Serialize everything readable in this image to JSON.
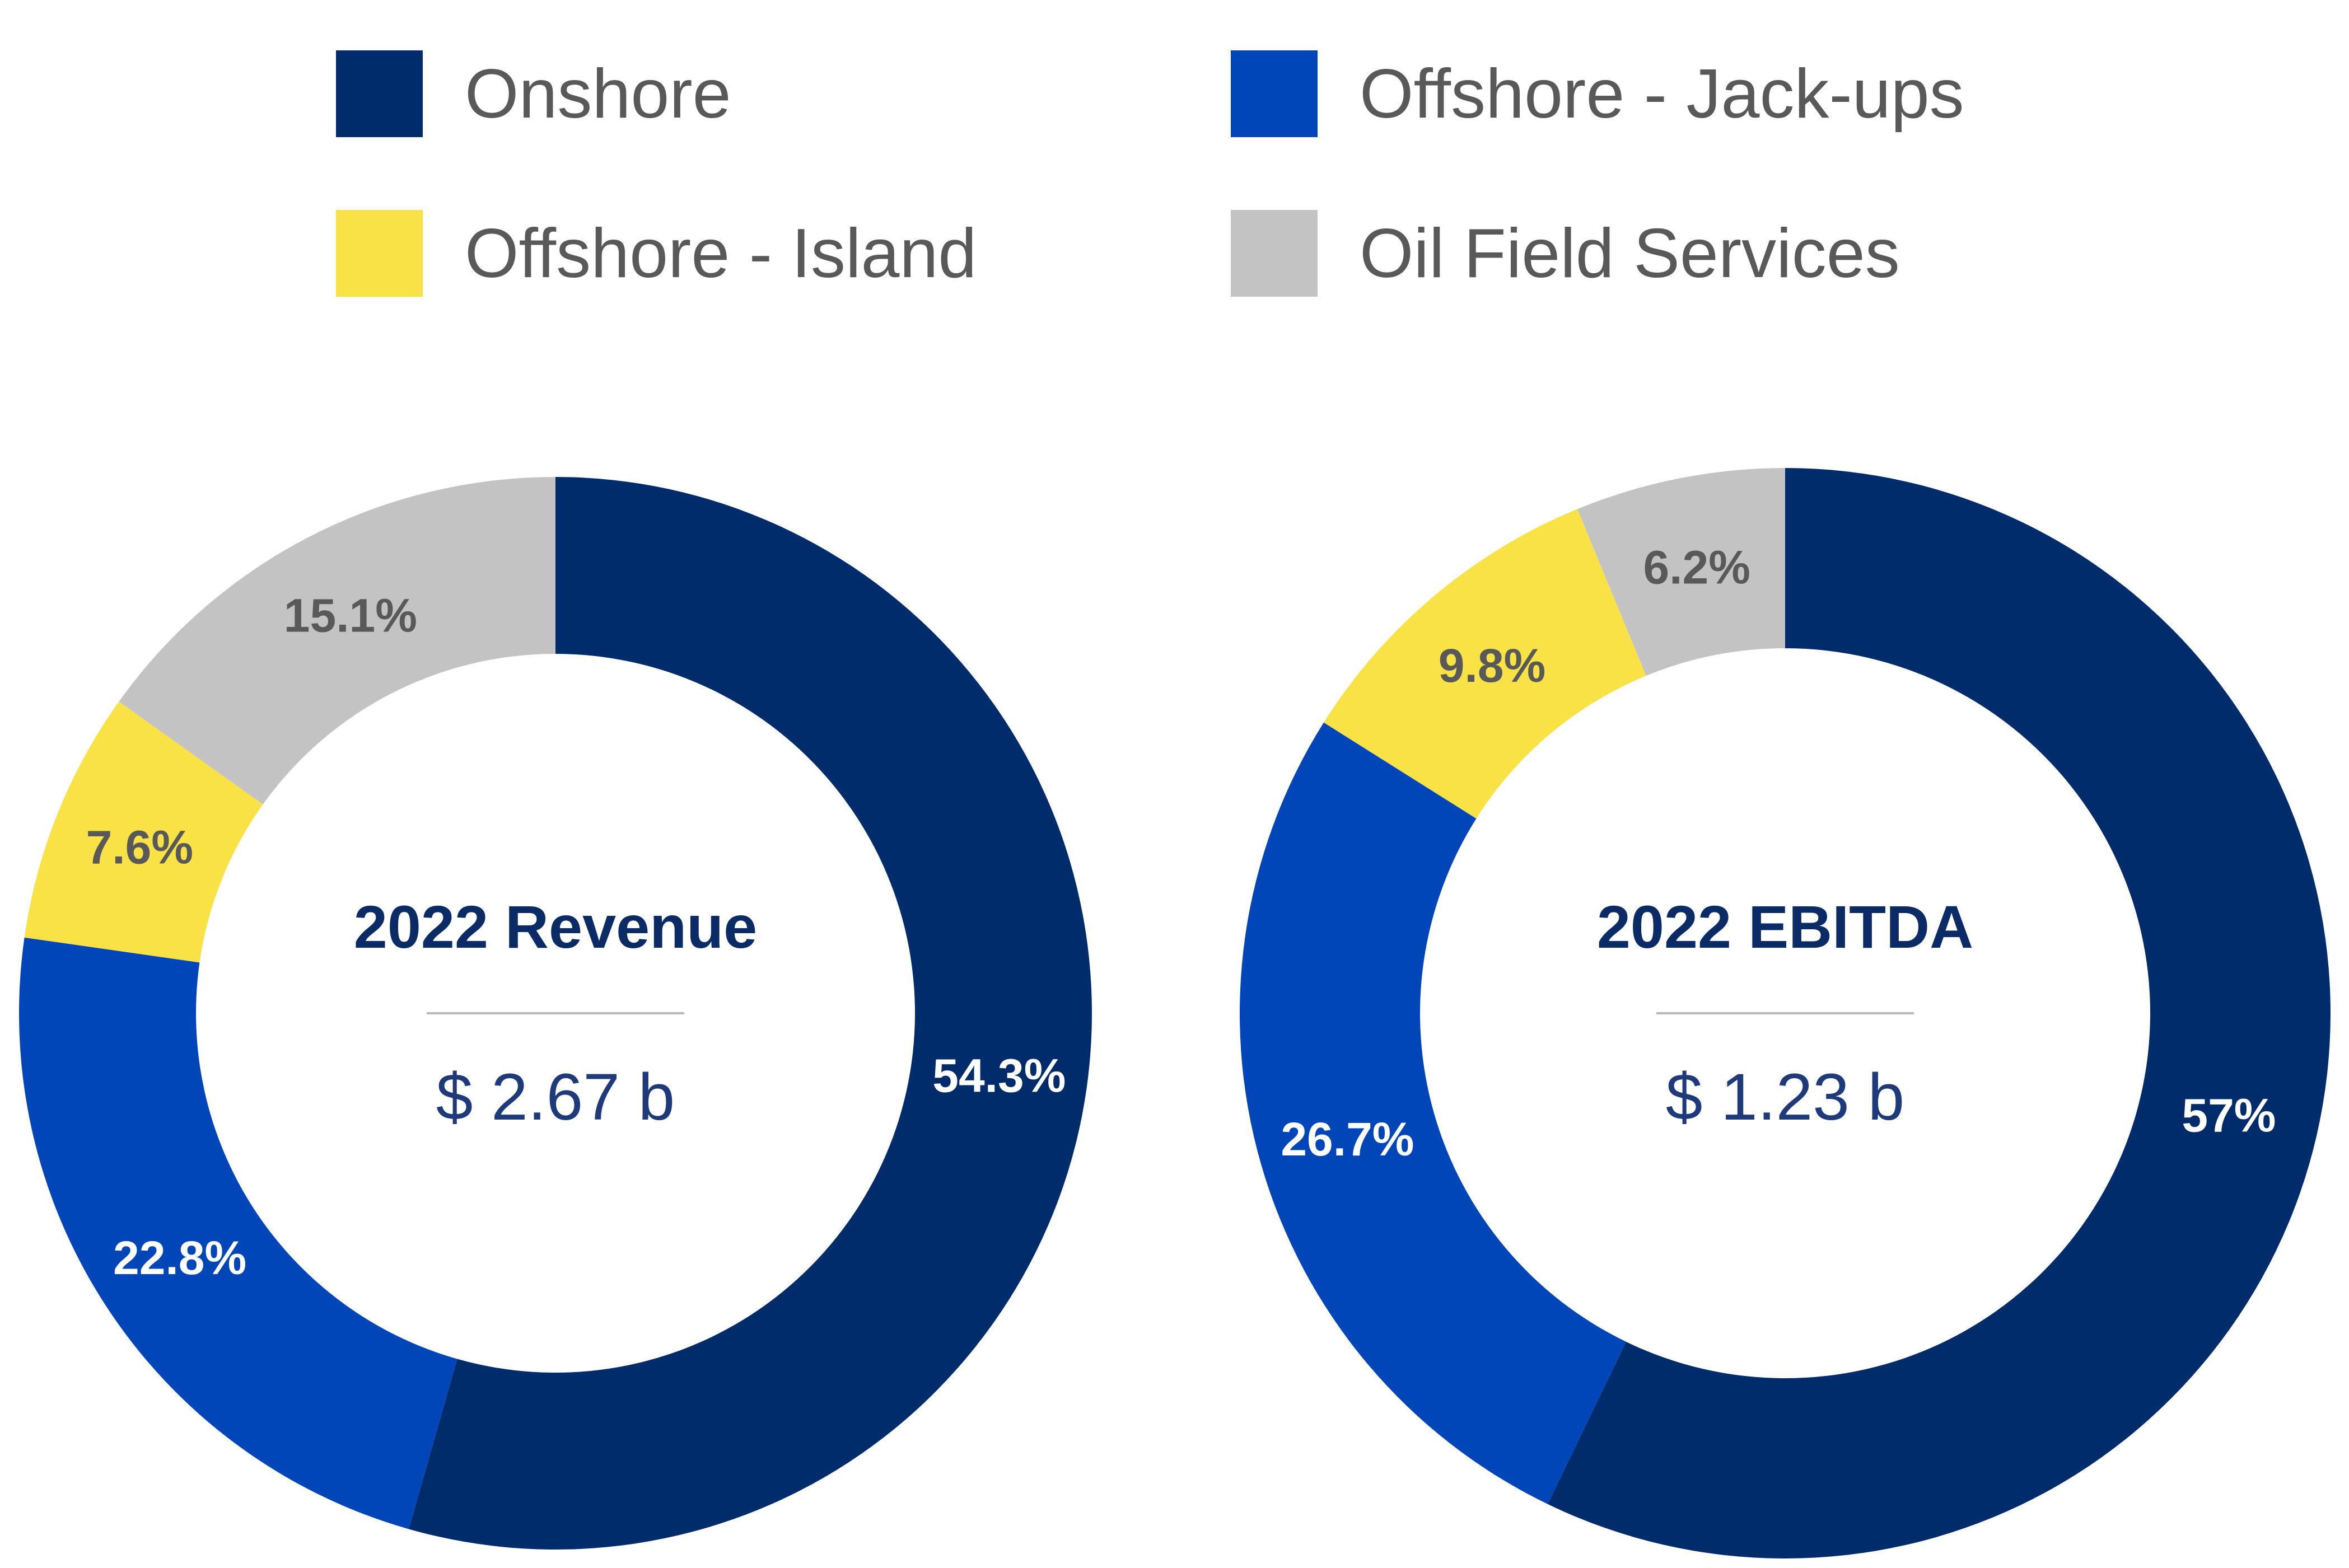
{
  "colors": {
    "onshore": "#002c6b",
    "jackups": "#0046b9",
    "island": "#f8e246",
    "ofs": "#c3c3c3",
    "label_dark": "#595959",
    "label_light": "#ffffff",
    "center_title": "#0a2b66",
    "center_value": "#1e3a7a",
    "divider": "#b8b8b8"
  },
  "legend": [
    {
      "label": "Onshore",
      "color_key": "onshore"
    },
    {
      "label": "Offshore - Jack-ups",
      "color_key": "jackups"
    },
    {
      "label": "Offshore - Island",
      "color_key": "island"
    },
    {
      "label": "Oil Field Services",
      "color_key": "ofs"
    }
  ],
  "chart_data": [
    {
      "type": "pie",
      "variant": "donut",
      "center_title": "2022 Revenue",
      "center_value": "$ 2.67 b",
      "slices": [
        {
          "name": "Onshore",
          "value": 54.3,
          "label": "54.3%",
          "color_key": "onshore"
        },
        {
          "name": "Offshore - Jack-ups",
          "value": 22.8,
          "label": "22.8%",
          "color_key": "jackups"
        },
        {
          "name": "Offshore - Island",
          "value": 7.6,
          "label": "7.6%",
          "color_key": "island"
        },
        {
          "name": "Oil Field Services",
          "value": 15.1,
          "label": "15.1%",
          "color_key": "ofs"
        }
      ]
    },
    {
      "type": "pie",
      "variant": "donut",
      "center_title": "2022 EBITDA",
      "center_value": "$ 1.23 b",
      "slices": [
        {
          "name": "Onshore",
          "value": 57,
          "label": "57%",
          "color_key": "onshore"
        },
        {
          "name": "Offshore - Jack-ups",
          "value": 26.7,
          "label": "26.7%",
          "color_key": "jackups"
        },
        {
          "name": "Offshore - Island",
          "value": 9.8,
          "label": "9.8%",
          "color_key": "island"
        },
        {
          "name": "Oil Field Services",
          "value": 6.2,
          "label": "6.2%",
          "color_key": "ofs"
        }
      ]
    }
  ]
}
